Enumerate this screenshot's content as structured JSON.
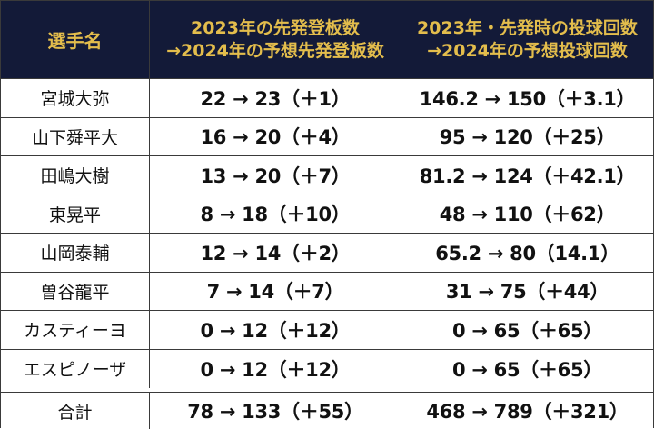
{
  "header": {
    "name": "選手名",
    "col1_line1": "2023年の先発登板数",
    "col1_line2": "→2024年の予想先発登板数",
    "col2_line1": "2023年・先発時の投球回数",
    "col2_line2": "→2024年の予想投球回数"
  },
  "rows": [
    {
      "name": "宮城大弥",
      "starts": "22 → 23（＋1）",
      "innings": "146.2 → 150（＋3.1）"
    },
    {
      "name": "山下舜平大",
      "starts": "16 → 20（＋4）",
      "innings": "95 → 120（＋25）"
    },
    {
      "name": "田嶋大樹",
      "starts": "13 → 20（＋7）",
      "innings": "81.2 → 124（＋42.1）"
    },
    {
      "name": "東晃平",
      "starts": "8 → 18（＋10）",
      "innings": "48 → 110（＋62）"
    },
    {
      "name": "山岡泰輔",
      "starts": "12 → 14（＋2）",
      "innings": "65.2 → 80（14.1）"
    },
    {
      "name": "曽谷龍平",
      "starts": "7 → 14（＋7）",
      "innings": "31 → 75（＋44）"
    },
    {
      "name": "カスティーヨ",
      "starts": "0 → 12（＋12）",
      "innings": "0 → 65（＋65）"
    },
    {
      "name": "エスピノーザ",
      "starts": "0 → 12（＋12）",
      "innings": "0 → 65（＋65）"
    }
  ],
  "total": {
    "name": "合計",
    "starts": "78 → 133（＋55）",
    "innings": "468 → 789（＋321）"
  }
}
